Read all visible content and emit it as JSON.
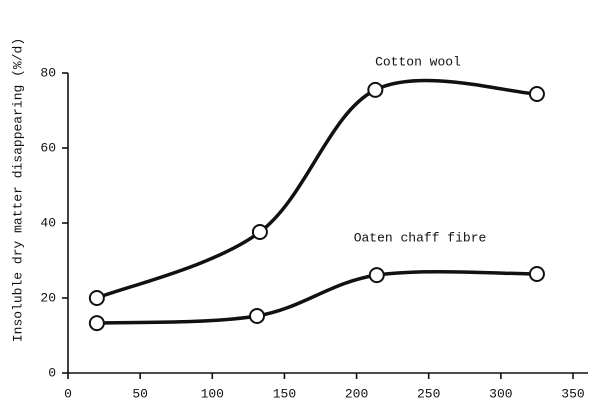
{
  "chart_data": {
    "type": "line",
    "y_label": "Insoluble dry matter disappearing (%/d)",
    "xlim": [
      0,
      350
    ],
    "xticks": [
      0,
      50,
      100,
      150,
      200,
      250,
      300,
      350
    ],
    "ylim": [
      0,
      80
    ],
    "yticks": [
      0,
      20,
      40,
      60,
      80
    ],
    "series": [
      {
        "name": "Cotton wool",
        "color": "#111111",
        "x": [
          20,
          133,
          213,
          325
        ],
        "values": [
          20,
          37.6,
          75.5,
          74.4
        ]
      },
      {
        "name": "Oaten chaff fibre",
        "color": "#111111",
        "x": [
          20,
          131,
          214,
          325
        ],
        "values": [
          13.3,
          15.2,
          26.1,
          26.4
        ]
      }
    ]
  }
}
